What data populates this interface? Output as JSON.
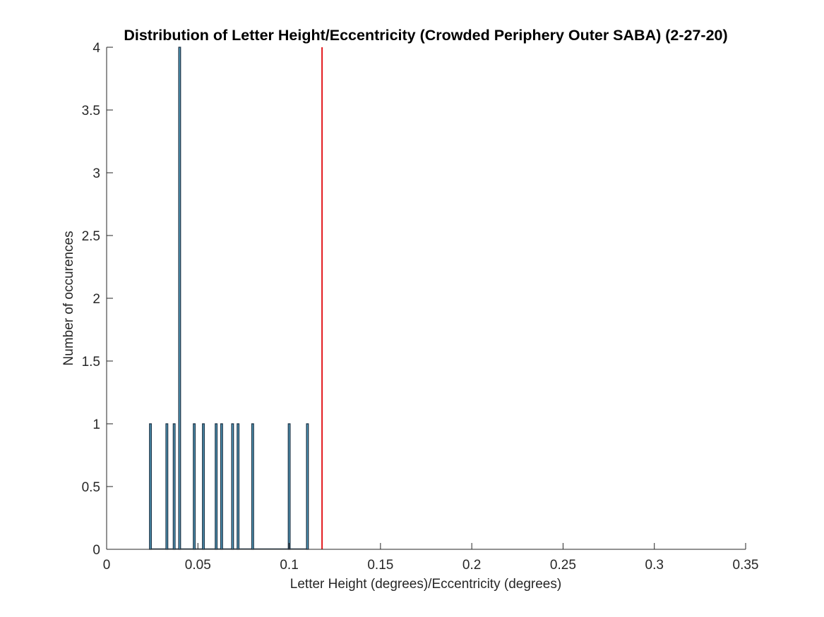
{
  "chart_data": {
    "type": "bar",
    "title": "Distribution of Letter Height/Eccentricity (Crowded Periphery Outer SABA) (2-27-20)",
    "xlabel": "Letter Height (degrees)/Eccentricity (degrees)",
    "ylabel": "Number of occurences",
    "xlim": [
      0,
      0.35
    ],
    "ylim": [
      0,
      4
    ],
    "xticks": [
      0,
      0.05,
      0.1,
      0.15,
      0.2,
      0.25,
      0.3,
      0.35
    ],
    "yticks": [
      0,
      0.5,
      1,
      1.5,
      2,
      2.5,
      3,
      3.5,
      4
    ],
    "xtick_labels": [
      "0",
      "0.05",
      "0.1",
      "0.15",
      "0.2",
      "0.25",
      "0.3",
      "0.35"
    ],
    "ytick_labels": [
      "0",
      "0.5",
      "1",
      "1.5",
      "2",
      "2.5",
      "3",
      "3.5",
      "4"
    ],
    "bin_width": 0.001,
    "bins": [
      {
        "x": 0.024,
        "count": 1
      },
      {
        "x": 0.033,
        "count": 1
      },
      {
        "x": 0.037,
        "count": 1
      },
      {
        "x": 0.04,
        "count": 4
      },
      {
        "x": 0.048,
        "count": 1
      },
      {
        "x": 0.053,
        "count": 1
      },
      {
        "x": 0.06,
        "count": 1
      },
      {
        "x": 0.063,
        "count": 1
      },
      {
        "x": 0.069,
        "count": 1
      },
      {
        "x": 0.072,
        "count": 1
      },
      {
        "x": 0.08,
        "count": 1
      },
      {
        "x": 0.1,
        "count": 1
      },
      {
        "x": 0.11,
        "count": 1
      }
    ],
    "reference_line": {
      "x": 0.118,
      "color": "#e3171b"
    },
    "colors": {
      "bar_edge": "#1f3548",
      "bar_fill": "#58a6c8",
      "axis": "#262626"
    },
    "grid": false,
    "box": false
  }
}
